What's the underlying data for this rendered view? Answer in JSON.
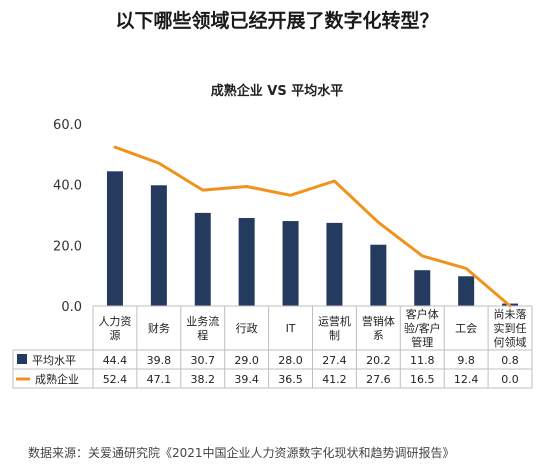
{
  "page": {
    "title": "以下哪些领域已经开展了数字化转型？",
    "source": "数据来源：关爱通研究院《2021中国企业人力资源数字化现状和趋势调研报告》"
  },
  "colors": {
    "bar": "#243a5e",
    "line": "#f0921b",
    "axis": "#666666",
    "table_border": "#bfbfbf"
  },
  "chart_data": {
    "type": "bar",
    "title": "成熟企业 VS 平均水平",
    "xlabel": "",
    "ylabel": "",
    "ylim": [
      0,
      60
    ],
    "yticks": [
      "0.0",
      "20.0",
      "40.0",
      "60.0"
    ],
    "grid": false,
    "legend": "table-left",
    "categories": [
      [
        "人力资",
        "源"
      ],
      [
        "财务"
      ],
      [
        "业务流",
        "程"
      ],
      [
        "行政"
      ],
      [
        "IT"
      ],
      [
        "运营机",
        "制"
      ],
      [
        "营销体",
        "系"
      ],
      [
        "客户体",
        "验/客户",
        "管理"
      ],
      [
        "工会"
      ],
      [
        "尚未落",
        "实到任",
        "何领域"
      ]
    ],
    "series": [
      {
        "name": "平均水平",
        "type": "bar",
        "values": [
          44.4,
          39.8,
          30.7,
          29.0,
          28.0,
          27.4,
          20.2,
          11.8,
          9.8,
          0.8
        ],
        "labels": [
          "44.4",
          "39.8",
          "30.7",
          "29.0",
          "28.0",
          "27.4",
          "20.2",
          "11.8",
          "9.8",
          "0.8"
        ]
      },
      {
        "name": "成熟企业",
        "type": "line",
        "values": [
          52.4,
          47.1,
          38.2,
          39.4,
          36.5,
          41.2,
          27.6,
          16.5,
          12.4,
          0.0
        ],
        "labels": [
          "52.4",
          "47.1",
          "38.2",
          "39.4",
          "36.5",
          "41.2",
          "27.6",
          "16.5",
          "12.4",
          "0.0"
        ]
      }
    ]
  }
}
